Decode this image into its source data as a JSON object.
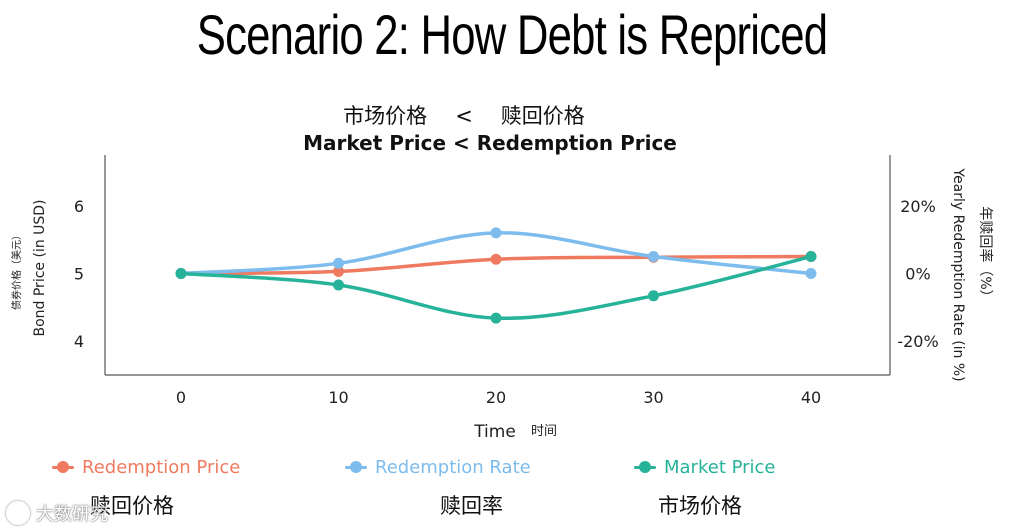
{
  "slide": {
    "title": "Scenario 2: How Debt is Repriced",
    "cn_subtitle_left": "市场价格",
    "cn_subtitle_op": "<",
    "cn_subtitle_right": "赎回价格"
  },
  "chart_data": {
    "type": "line",
    "title": "Market Price < Redemption Price",
    "x": [
      0,
      10,
      20,
      30,
      40
    ],
    "xlabel": "Time",
    "xlabel_cn": "时间",
    "ylabel_left": "Bond Price (in USD)",
    "ylabel_left_cn": "债券价格（美元）",
    "ylabel_right": "Yearly Redemption Rate (in %)",
    "ylabel_right_cn": "年赎回率（%）",
    "ylim_left": [
      3.5,
      6.75
    ],
    "yticks_left": [
      4,
      5,
      6
    ],
    "ylim_right": [
      -30,
      35
    ],
    "yticks_right": [
      -20,
      0,
      20
    ],
    "ytick_labels_right": [
      "-20%",
      "0%",
      "20%"
    ],
    "grid": false,
    "legend_position": "bottom",
    "series": [
      {
        "name": "Redemption Price",
        "name_cn": "赎回价格",
        "axis": "left",
        "color": "#f07a60",
        "values": [
          5.0,
          5.03,
          5.21,
          5.24,
          5.25
        ]
      },
      {
        "name": "Redemption Rate",
        "name_cn": "赎回率",
        "axis": "right",
        "color": "#7dbcec",
        "values": [
          0,
          3,
          12,
          5,
          0
        ]
      },
      {
        "name": "Market Price",
        "name_cn": "市场价格",
        "axis": "left",
        "color": "#26b39a",
        "values": [
          5.0,
          4.83,
          4.34,
          4.67,
          5.25
        ]
      }
    ]
  },
  "watermark": {
    "text": "大数研究"
  }
}
